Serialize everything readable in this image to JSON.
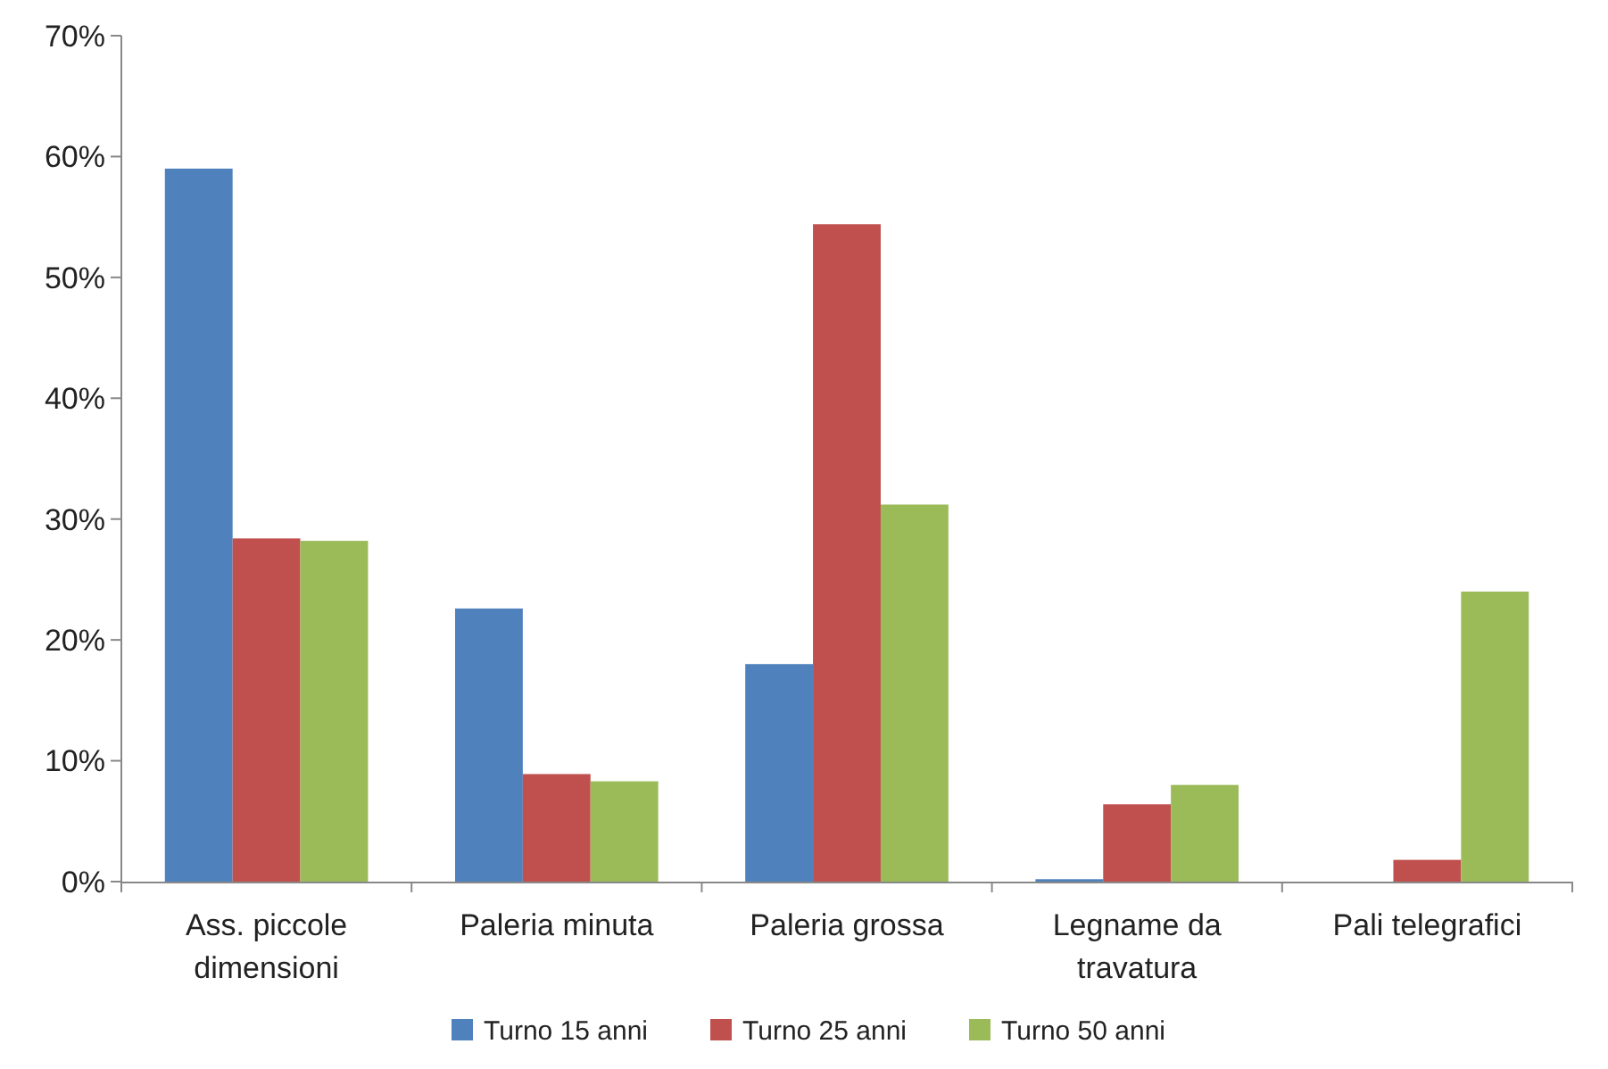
{
  "chart_data": {
    "type": "bar",
    "categories": [
      "Ass. piccole dimensioni",
      "Paleria minuta",
      "Paleria grossa",
      "Legname da travatura",
      "Pali telegrafici"
    ],
    "series": [
      {
        "name": "Turno 15 anni",
        "color": "#4f81bd",
        "values": [
          59.0,
          22.6,
          18.0,
          0.2,
          0
        ]
      },
      {
        "name": "Turno 25 anni",
        "color": "#c0504d",
        "values": [
          28.4,
          8.9,
          54.4,
          6.4,
          1.8
        ]
      },
      {
        "name": "Turno 50 anni",
        "color": "#9bbb59",
        "values": [
          28.2,
          8.3,
          31.2,
          8.0,
          24.0
        ]
      }
    ],
    "ylim": [
      0,
      70
    ],
    "yticks": [
      {
        "value": 0,
        "label": "0%"
      },
      {
        "value": 10,
        "label": "10%"
      },
      {
        "value": 20,
        "label": "20%"
      },
      {
        "value": 30,
        "label": "30%"
      },
      {
        "value": 40,
        "label": "40%"
      },
      {
        "value": 50,
        "label": "50%"
      },
      {
        "value": 60,
        "label": "60%"
      },
      {
        "value": 70,
        "label": "70%"
      }
    ],
    "grid": false,
    "legend": "bottom"
  }
}
